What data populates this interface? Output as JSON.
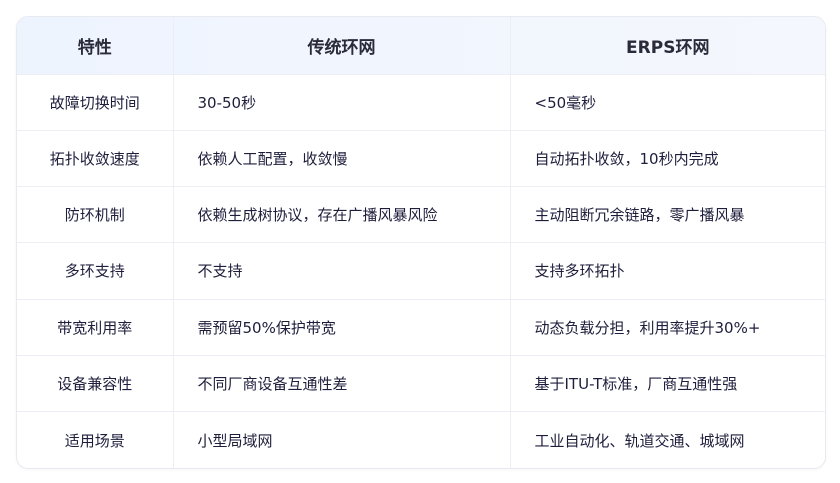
{
  "table": {
    "headers": [
      "特性",
      "传统环网",
      "ERPS环网"
    ],
    "rows": [
      [
        "故障切换时间",
        "30-50秒",
        "<50毫秒"
      ],
      [
        "拓扑收敛速度",
        "依赖人工配置，收敛慢",
        "自动拓扑收敛，10秒内完成"
      ],
      [
        "防环机制",
        "依赖生成树协议，存在广播风暴风险",
        "主动阻断冗余链路，零广播风暴"
      ],
      [
        "多环支持",
        "不支持",
        "支持多环拓扑"
      ],
      [
        "带宽利用率",
        "需预留50%保护带宽",
        "动态负载分担，利用率提升30%+"
      ],
      [
        "设备兼容性",
        "不同厂商设备互通性差",
        "基于ITU-T标准，厂商互通性强"
      ],
      [
        "适用场景",
        "小型局域网",
        "工业自动化、轨道交通、城域网"
      ]
    ]
  }
}
